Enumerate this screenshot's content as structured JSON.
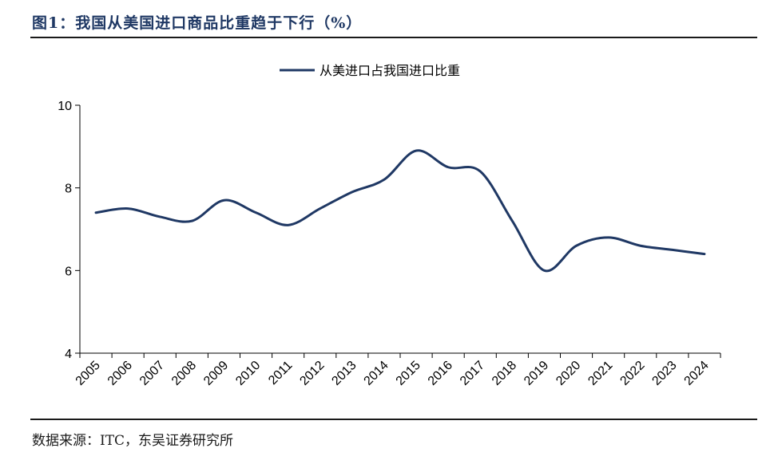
{
  "header": {
    "title": "图1：我国从美国进口商品比重趋于下行（%）"
  },
  "footer": {
    "source": "数据来源：ITC，东吴证券研究所"
  },
  "chart_data": {
    "type": "line",
    "categories": [
      "2005",
      "2006",
      "2007",
      "2008",
      "2009",
      "2010",
      "2011",
      "2012",
      "2013",
      "2014",
      "2015",
      "2016",
      "2017",
      "2018",
      "2019",
      "2020",
      "2021",
      "2022",
      "2023",
      "2024"
    ],
    "series": [
      {
        "name": "从美进口占我国进口比重",
        "color": "#1f3864",
        "values": [
          7.4,
          7.5,
          7.3,
          7.2,
          7.7,
          7.4,
          7.1,
          7.5,
          7.9,
          8.2,
          8.9,
          8.5,
          8.4,
          7.2,
          6.0,
          6.6,
          6.8,
          6.6,
          6.5,
          6.4
        ]
      }
    ],
    "ylim": [
      4,
      10
    ],
    "yticks": [
      "4",
      "6",
      "8",
      "10"
    ],
    "xlabel": "",
    "ylabel": "",
    "legend": "top-center",
    "grid": false
  }
}
